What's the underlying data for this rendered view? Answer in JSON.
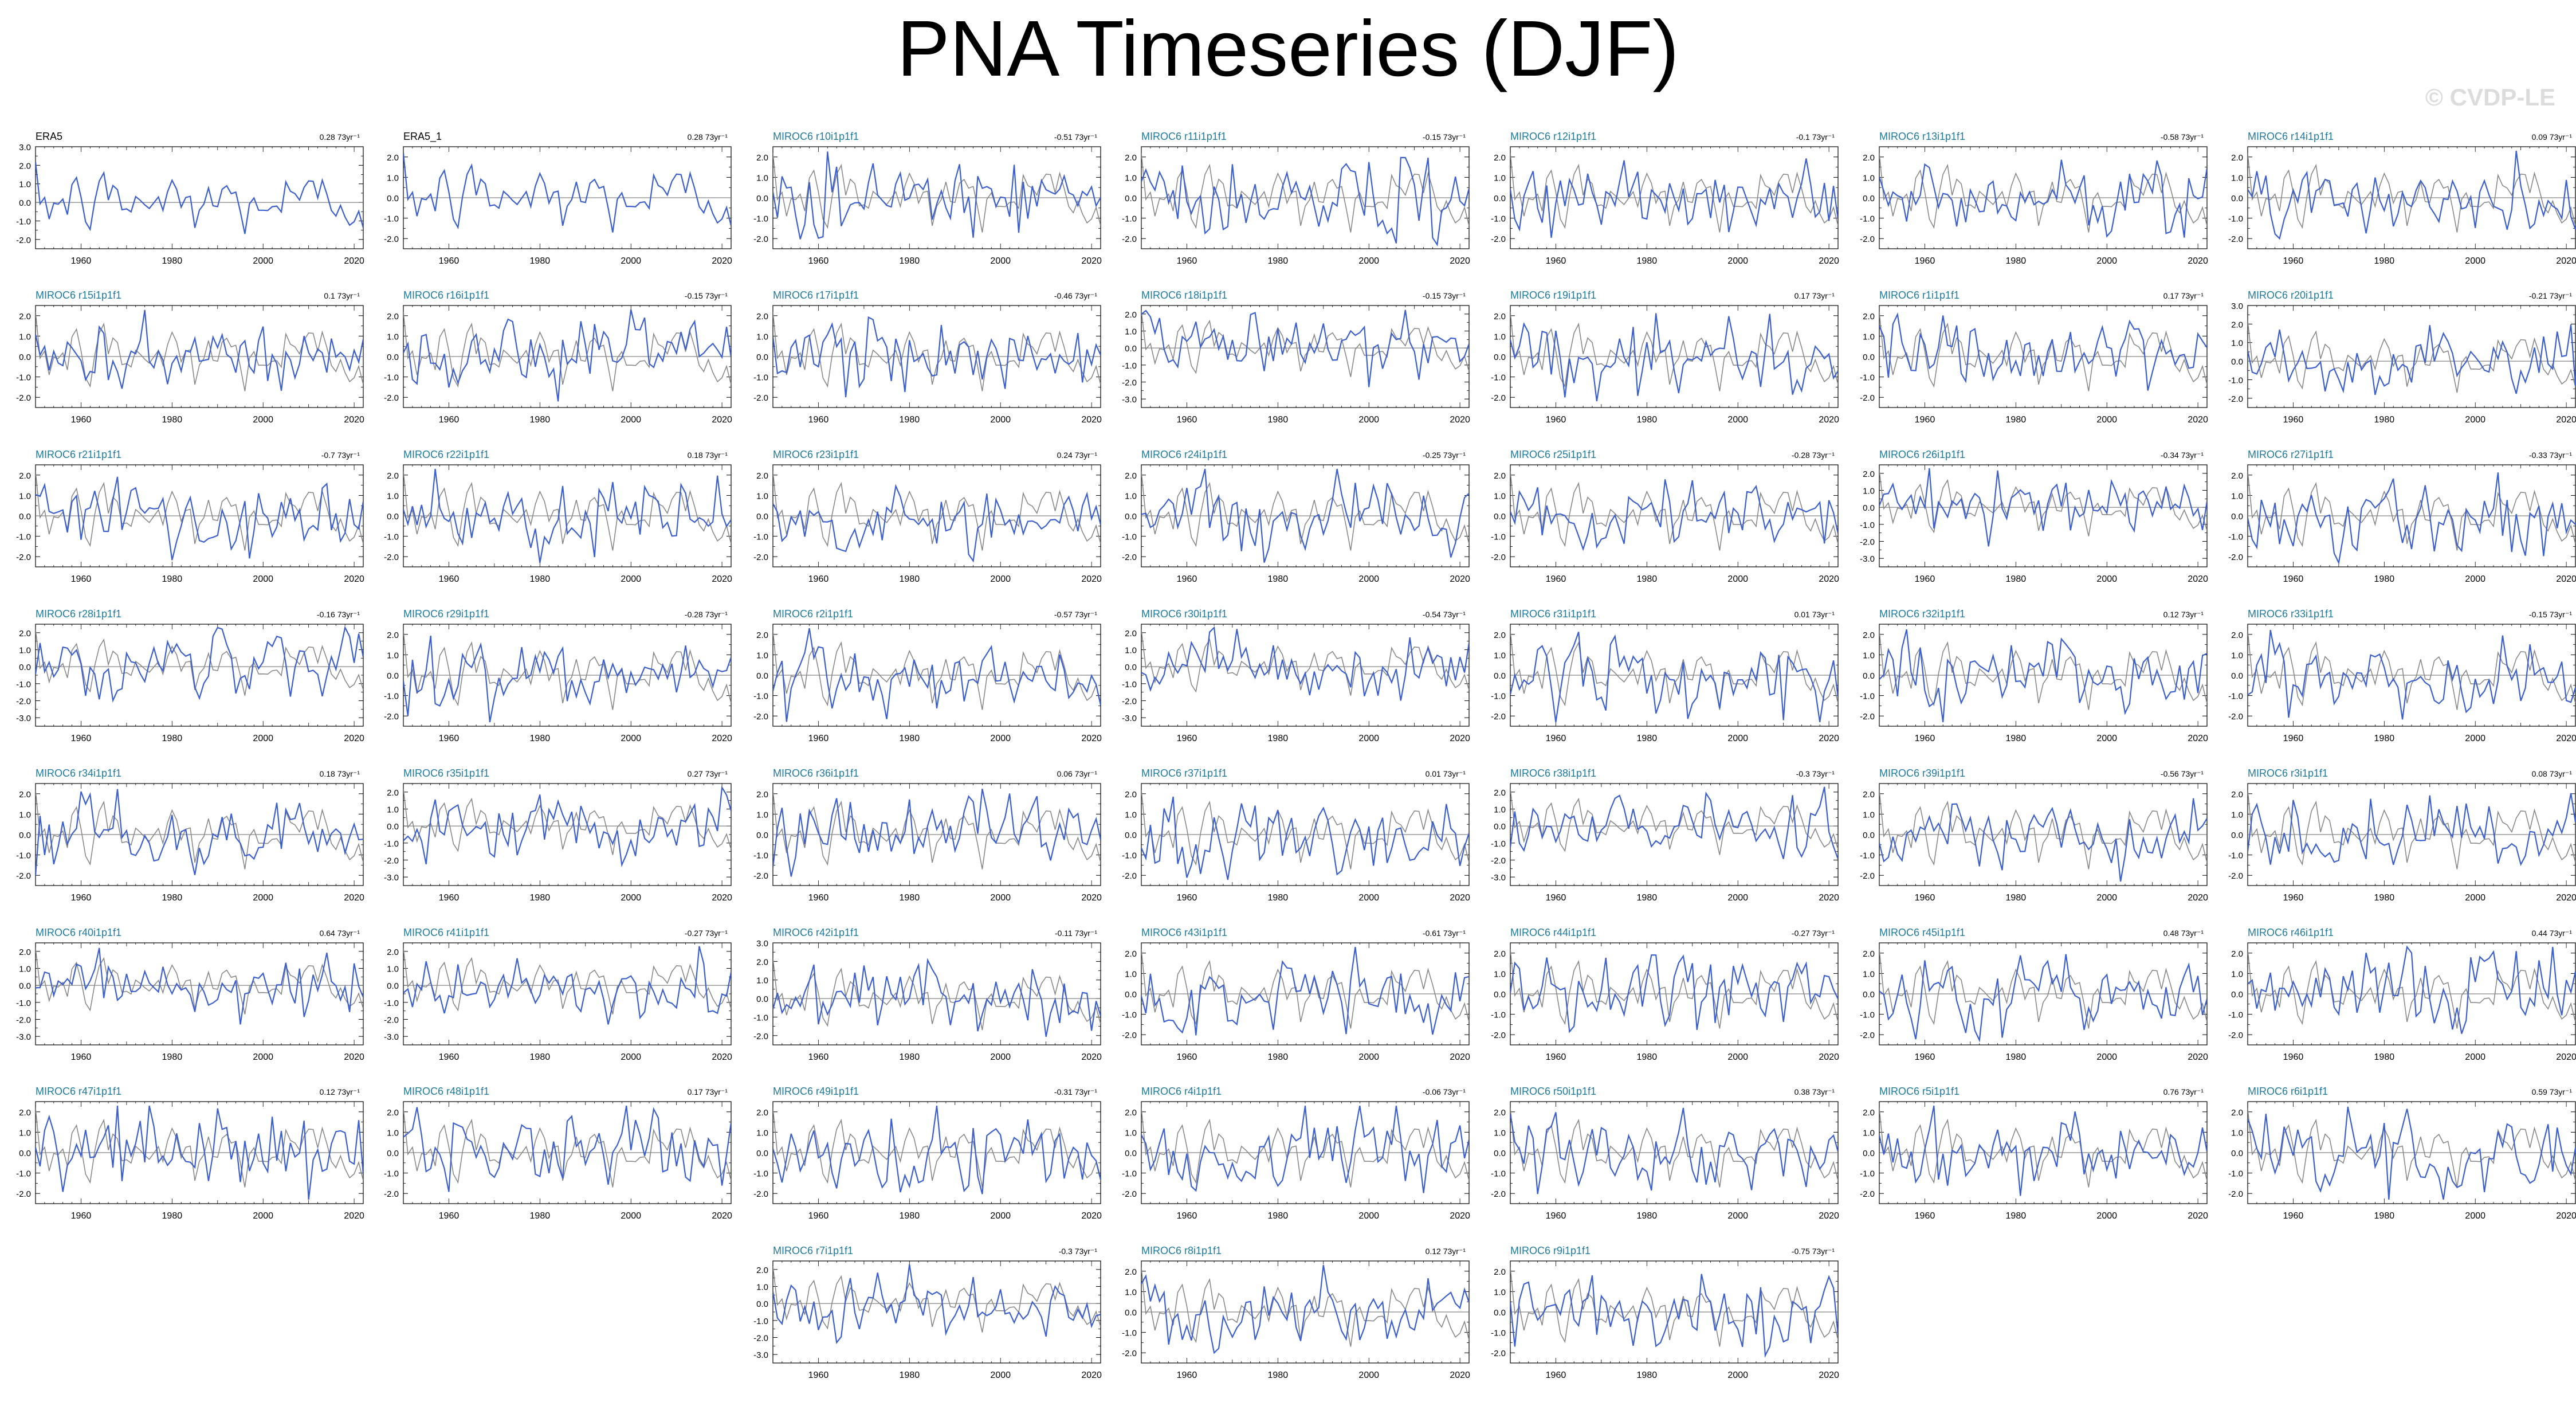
{
  "title": "PNA Timeseries (DJF)",
  "watermark": "© CVDP-LE",
  "colors": {
    "model": "#3b5fcc",
    "obs": "#888888",
    "model_label": "#1d7a9e",
    "obs_label": "#000000"
  },
  "chart_data": {
    "type": "line",
    "xlim": [
      1950,
      2022
    ],
    "x_ticks": [
      1960,
      1980,
      2000,
      2020
    ],
    "panels": [
      {
        "label": "ERA5",
        "trend": "0.28 73yr⁻¹",
        "yticks": [
          "3.0",
          "2.0",
          "1.0",
          "0.0",
          "-1.0",
          "-2.0"
        ],
        "ylim": [
          -2.5,
          3
        ],
        "is_obs": true
      },
      {
        "label": "ERA5_1",
        "trend": "0.28 73yr⁻¹",
        "yticks": [
          "2.0",
          "1.0",
          "0.0",
          "-1.0",
          "-2.0"
        ],
        "ylim": [
          -2.5,
          2.5
        ],
        "is_obs": true
      },
      {
        "label": "MIROC6 r10i1p1f1",
        "trend": "-0.51 73yr⁻¹",
        "yticks": [
          "2.0",
          "1.0",
          "0.0",
          "-1.0",
          "-2.0"
        ],
        "ylim": [
          -2.5,
          2.5
        ]
      },
      {
        "label": "MIROC6 r11i1p1f1",
        "trend": "-0.15 73yr⁻¹",
        "yticks": [
          "2.0",
          "1.0",
          "0.0",
          "-1.0",
          "-2.0"
        ],
        "ylim": [
          -2.5,
          2.5
        ]
      },
      {
        "label": "MIROC6 r12i1p1f1",
        "trend": "-0.1 73yr⁻¹",
        "yticks": [
          "2.0",
          "1.0",
          "0.0",
          "-1.0",
          "-2.0"
        ],
        "ylim": [
          -2.5,
          2.5
        ]
      },
      {
        "label": "MIROC6 r13i1p1f1",
        "trend": "-0.58 73yr⁻¹",
        "yticks": [
          "2.0",
          "1.0",
          "0.0",
          "-1.0",
          "-2.0"
        ],
        "ylim": [
          -2.5,
          2.5
        ]
      },
      {
        "label": "MIROC6 r14i1p1f1",
        "trend": "0.09 73yr⁻¹",
        "yticks": [
          "2.0",
          "1.0",
          "0.0",
          "-1.0",
          "-2.0"
        ],
        "ylim": [
          -2.5,
          2.5
        ]
      },
      {
        "label": "MIROC6 r15i1p1f1",
        "trend": "0.1 73yr⁻¹",
        "yticks": [
          "2.0",
          "1.0",
          "0.0",
          "-1.0",
          "-2.0"
        ],
        "ylim": [
          -2.5,
          2.5
        ]
      },
      {
        "label": "MIROC6 r16i1p1f1",
        "trend": "-0.15 73yr⁻¹",
        "yticks": [
          "2.0",
          "1.0",
          "0.0",
          "-1.0",
          "-2.0"
        ],
        "ylim": [
          -2.5,
          2.5
        ]
      },
      {
        "label": "MIROC6 r17i1p1f1",
        "trend": "-0.46 73yr⁻¹",
        "yticks": [
          "2.0",
          "1.0",
          "0.0",
          "-1.0",
          "-2.0"
        ],
        "ylim": [
          -2.5,
          2.5
        ]
      },
      {
        "label": "MIROC6 r18i1p1f1",
        "trend": "-0.15 73yr⁻¹",
        "yticks": [
          "2.0",
          "1.0",
          "0.0",
          "-1.0",
          "-2.0",
          "-3.0"
        ],
        "ylim": [
          -3.5,
          2.5
        ]
      },
      {
        "label": "MIROC6 r19i1p1f1",
        "trend": "0.17 73yr⁻¹",
        "yticks": [
          "2.0",
          "1.0",
          "0.0",
          "-1.0",
          "-2.0"
        ],
        "ylim": [
          -2.5,
          2.5
        ]
      },
      {
        "label": "MIROC6 r1i1p1f1",
        "trend": "0.17 73yr⁻¹",
        "yticks": [
          "2.0",
          "1.0",
          "0.0",
          "-1.0",
          "-2.0"
        ],
        "ylim": [
          -2.5,
          2.5
        ]
      },
      {
        "label": "MIROC6 r20i1p1f1",
        "trend": "-0.21 73yr⁻¹",
        "yticks": [
          "3.0",
          "2.0",
          "1.0",
          "0.0",
          "-1.0",
          "-2.0"
        ],
        "ylim": [
          -2.5,
          3
        ]
      },
      {
        "label": "MIROC6 r21i1p1f1",
        "trend": "-0.7 73yr⁻¹",
        "yticks": [
          "2.0",
          "1.0",
          "0.0",
          "-1.0",
          "-2.0"
        ],
        "ylim": [
          -2.5,
          2.5
        ]
      },
      {
        "label": "MIROC6 r22i1p1f1",
        "trend": "0.18 73yr⁻¹",
        "yticks": [
          "2.0",
          "1.0",
          "0.0",
          "-1.0",
          "-2.0"
        ],
        "ylim": [
          -2.5,
          2.5
        ]
      },
      {
        "label": "MIROC6 r23i1p1f1",
        "trend": "0.24 73yr⁻¹",
        "yticks": [
          "2.0",
          "1.0",
          "0.0",
          "-1.0",
          "-2.0"
        ],
        "ylim": [
          -2.5,
          2.5
        ]
      },
      {
        "label": "MIROC6 r24i1p1f1",
        "trend": "-0.25 73yr⁻¹",
        "yticks": [
          "2.0",
          "1.0",
          "0.0",
          "-1.0",
          "-2.0"
        ],
        "ylim": [
          -2.5,
          2.5
        ]
      },
      {
        "label": "MIROC6 r25i1p1f1",
        "trend": "-0.28 73yr⁻¹",
        "yticks": [
          "2.0",
          "1.0",
          "0.0",
          "-1.0",
          "-2.0"
        ],
        "ylim": [
          -2.5,
          2.5
        ]
      },
      {
        "label": "MIROC6 r26i1p1f1",
        "trend": "-0.34 73yr⁻¹",
        "yticks": [
          "2.0",
          "1.0",
          "0.0",
          "-1.0",
          "-2.0",
          "-3.0"
        ],
        "ylim": [
          -3.5,
          2.5
        ]
      },
      {
        "label": "MIROC6 r27i1p1f1",
        "trend": "-0.33 73yr⁻¹",
        "yticks": [
          "2.0",
          "1.0",
          "0.0",
          "-1.0",
          "-2.0"
        ],
        "ylim": [
          -2.5,
          2.5
        ]
      },
      {
        "label": "MIROC6 r28i1p1f1",
        "trend": "-0.16 73yr⁻¹",
        "yticks": [
          "2.0",
          "1.0",
          "0.0",
          "-1.0",
          "-2.0",
          "-3.0"
        ],
        "ylim": [
          -3.5,
          2.5
        ]
      },
      {
        "label": "MIROC6 r29i1p1f1",
        "trend": "-0.28 73yr⁻¹",
        "yticks": [
          "2.0",
          "1.0",
          "0.0",
          "-1.0",
          "-2.0"
        ],
        "ylim": [
          -2.5,
          2.5
        ]
      },
      {
        "label": "MIROC6 r2i1p1f1",
        "trend": "-0.57 73yr⁻¹",
        "yticks": [
          "2.0",
          "1.0",
          "0.0",
          "-1.0",
          "-2.0"
        ],
        "ylim": [
          -2.5,
          2.5
        ]
      },
      {
        "label": "MIROC6 r30i1p1f1",
        "trend": "-0.54 73yr⁻¹",
        "yticks": [
          "2.0",
          "1.0",
          "0.0",
          "-1.0",
          "-2.0",
          "-3.0"
        ],
        "ylim": [
          -3.5,
          2.5
        ]
      },
      {
        "label": "MIROC6 r31i1p1f1",
        "trend": "0.01 73yr⁻¹",
        "yticks": [
          "2.0",
          "1.0",
          "0.0",
          "-1.0",
          "-2.0"
        ],
        "ylim": [
          -2.5,
          2.5
        ]
      },
      {
        "label": "MIROC6 r32i1p1f1",
        "trend": "0.12 73yr⁻¹",
        "yticks": [
          "2.0",
          "1.0",
          "0.0",
          "-1.0",
          "-2.0"
        ],
        "ylim": [
          -2.5,
          2.5
        ]
      },
      {
        "label": "MIROC6 r33i1p1f1",
        "trend": "-0.15 73yr⁻¹",
        "yticks": [
          "2.0",
          "1.0",
          "0.0",
          "-1.0",
          "-2.0"
        ],
        "ylim": [
          -2.5,
          2.5
        ]
      },
      {
        "label": "MIROC6 r34i1p1f1",
        "trend": "0.18 73yr⁻¹",
        "yticks": [
          "2.0",
          "1.0",
          "0.0",
          "-1.0",
          "-2.0"
        ],
        "ylim": [
          -2.5,
          2.5
        ]
      },
      {
        "label": "MIROC6 r35i1p1f1",
        "trend": "0.27 73yr⁻¹",
        "yticks": [
          "2.0",
          "1.0",
          "0.0",
          "-1.0",
          "-2.0",
          "-3.0"
        ],
        "ylim": [
          -3.5,
          2.5
        ]
      },
      {
        "label": "MIROC6 r36i1p1f1",
        "trend": "0.06 73yr⁻¹",
        "yticks": [
          "2.0",
          "1.0",
          "0.0",
          "-1.0",
          "-2.0"
        ],
        "ylim": [
          -2.5,
          2.5
        ]
      },
      {
        "label": "MIROC6 r37i1p1f1",
        "trend": "0.01 73yr⁻¹",
        "yticks": [
          "2.0",
          "1.0",
          "0.0",
          "-1.0",
          "-2.0"
        ],
        "ylim": [
          -2.5,
          2.5
        ]
      },
      {
        "label": "MIROC6 r38i1p1f1",
        "trend": "-0.3 73yr⁻¹",
        "yticks": [
          "2.0",
          "1.0",
          "0.0",
          "-1.0",
          "-2.0",
          "-3.0"
        ],
        "ylim": [
          -3.5,
          2.5
        ]
      },
      {
        "label": "MIROC6 r39i1p1f1",
        "trend": "-0.56 73yr⁻¹",
        "yticks": [
          "2.0",
          "1.0",
          "0.0",
          "-1.0",
          "-2.0"
        ],
        "ylim": [
          -2.5,
          2.5
        ]
      },
      {
        "label": "MIROC6 r3i1p1f1",
        "trend": "0.08 73yr⁻¹",
        "yticks": [
          "2.0",
          "1.0",
          "0.0",
          "-1.0",
          "-2.0"
        ],
        "ylim": [
          -2.5,
          2.5
        ]
      },
      {
        "label": "MIROC6 r40i1p1f1",
        "trend": "0.64 73yr⁻¹",
        "yticks": [
          "2.0",
          "1.0",
          "0.0",
          "-1.0",
          "-2.0",
          "-3.0"
        ],
        "ylim": [
          -3.5,
          2.5
        ]
      },
      {
        "label": "MIROC6 r41i1p1f1",
        "trend": "-0.27 73yr⁻¹",
        "yticks": [
          "2.0",
          "1.0",
          "0.0",
          "-1.0",
          "-2.0",
          "-3.0"
        ],
        "ylim": [
          -3.5,
          2.5
        ]
      },
      {
        "label": "MIROC6 r42i1p1f1",
        "trend": "-0.11 73yr⁻¹",
        "yticks": [
          "3.0",
          "2.0",
          "1.0",
          "0.0",
          "-1.0",
          "-2.0"
        ],
        "ylim": [
          -2.5,
          3
        ]
      },
      {
        "label": "MIROC6 r43i1p1f1",
        "trend": "-0.61 73yr⁻¹",
        "yticks": [
          "2.0",
          "1.0",
          "0.0",
          "-1.0",
          "-2.0"
        ],
        "ylim": [
          -2.5,
          2.5
        ]
      },
      {
        "label": "MIROC6 r44i1p1f1",
        "trend": "-0.27 73yr⁻¹",
        "yticks": [
          "2.0",
          "1.0",
          "0.0",
          "-1.0",
          "-2.0"
        ],
        "ylim": [
          -2.5,
          2.5
        ]
      },
      {
        "label": "MIROC6 r45i1p1f1",
        "trend": "0.48 73yr⁻¹",
        "yticks": [
          "2.0",
          "1.0",
          "0.0",
          "-1.0",
          "-2.0"
        ],
        "ylim": [
          -2.5,
          2.5
        ]
      },
      {
        "label": "MIROC6 r46i1p1f1",
        "trend": "0.44 73yr⁻¹",
        "yticks": [
          "2.0",
          "1.0",
          "0.0",
          "-1.0",
          "-2.0"
        ],
        "ylim": [
          -2.5,
          2.5
        ]
      },
      {
        "label": "MIROC6 r47i1p1f1",
        "trend": "0.12 73yr⁻¹",
        "yticks": [
          "2.0",
          "1.0",
          "0.0",
          "-1.0",
          "-2.0"
        ],
        "ylim": [
          -2.5,
          2.5
        ]
      },
      {
        "label": "MIROC6 r48i1p1f1",
        "trend": "0.17 73yr⁻¹",
        "yticks": [
          "2.0",
          "1.0",
          "0.0",
          "-1.0",
          "-2.0"
        ],
        "ylim": [
          -2.5,
          2.5
        ]
      },
      {
        "label": "MIROC6 r49i1p1f1",
        "trend": "-0.31 73yr⁻¹",
        "yticks": [
          "2.0",
          "1.0",
          "0.0",
          "-1.0",
          "-2.0"
        ],
        "ylim": [
          -2.5,
          2.5
        ]
      },
      {
        "label": "MIROC6 r4i1p1f1",
        "trend": "-0.06 73yr⁻¹",
        "yticks": [
          "2.0",
          "1.0",
          "0.0",
          "-1.0",
          "-2.0"
        ],
        "ylim": [
          -2.5,
          2.5
        ]
      },
      {
        "label": "MIROC6 r50i1p1f1",
        "trend": "0.38 73yr⁻¹",
        "yticks": [
          "2.0",
          "1.0",
          "0.0",
          "-1.0",
          "-2.0"
        ],
        "ylim": [
          -2.5,
          2.5
        ]
      },
      {
        "label": "MIROC6 r5i1p1f1",
        "trend": "0.76 73yr⁻¹",
        "yticks": [
          "2.0",
          "1.0",
          "0.0",
          "-1.0",
          "-2.0"
        ],
        "ylim": [
          -2.5,
          2.5
        ]
      },
      {
        "label": "MIROC6 r6i1p1f1",
        "trend": "0.59 73yr⁻¹",
        "yticks": [
          "2.0",
          "1.0",
          "0.0",
          "-1.0",
          "-2.0"
        ],
        "ylim": [
          -2.5,
          2.5
        ]
      },
      {
        "label": "MIROC6 r7i1p1f1",
        "trend": "-0.3 73yr⁻¹",
        "yticks": [
          "2.0",
          "1.0",
          "0.0",
          "-1.0",
          "-2.0",
          "-3.0"
        ],
        "ylim": [
          -3.5,
          2.5
        ]
      },
      {
        "label": "MIROC6 r8i1p1f1",
        "trend": "0.12 73yr⁻¹",
        "yticks": [
          "2.0",
          "1.0",
          "0.0",
          "-1.0",
          "-2.0"
        ],
        "ylim": [
          -2.5,
          2.5
        ]
      },
      {
        "label": "MIROC6 r9i1p1f1",
        "trend": "-0.75 73yr⁻¹",
        "yticks": [
          "2.0",
          "1.0",
          "0.0",
          "-1.0",
          "-2.0"
        ],
        "ylim": [
          -2.5,
          2.5
        ]
      }
    ]
  }
}
